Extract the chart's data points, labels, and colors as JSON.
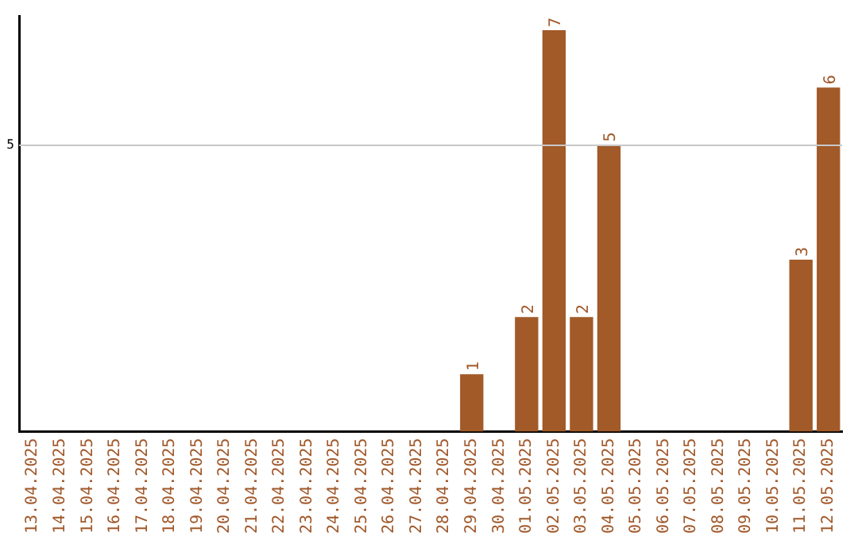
{
  "chart_data": {
    "type": "bar",
    "categories": [
      "13.04.2025",
      "14.04.2025",
      "15.04.2025",
      "16.04.2025",
      "17.04.2025",
      "18.04.2025",
      "19.04.2025",
      "20.04.2025",
      "21.04.2025",
      "22.04.2025",
      "23.04.2025",
      "24.04.2025",
      "25.04.2025",
      "26.04.2025",
      "27.04.2025",
      "28.04.2025",
      "29.04.2025",
      "30.04.2025",
      "01.05.2025",
      "02.05.2025",
      "03.05.2025",
      "04.05.2025",
      "05.05.2025",
      "06.05.2025",
      "07.05.2025",
      "08.05.2025",
      "09.05.2025",
      "10.05.2025",
      "11.05.2025",
      "12.05.2025"
    ],
    "values": [
      null,
      null,
      null,
      null,
      null,
      null,
      null,
      null,
      null,
      null,
      null,
      null,
      null,
      null,
      null,
      null,
      1,
      null,
      2,
      7,
      2,
      5,
      null,
      null,
      null,
      null,
      null,
      null,
      3,
      6
    ],
    "data_labels": true,
    "color": "#a15a28",
    "ylim": [
      0,
      7.25
    ],
    "ref_lines": [
      {
        "axis": "y",
        "value": 5,
        "label": "5",
        "color": "#c8c8c8"
      }
    ],
    "legend": false
  }
}
